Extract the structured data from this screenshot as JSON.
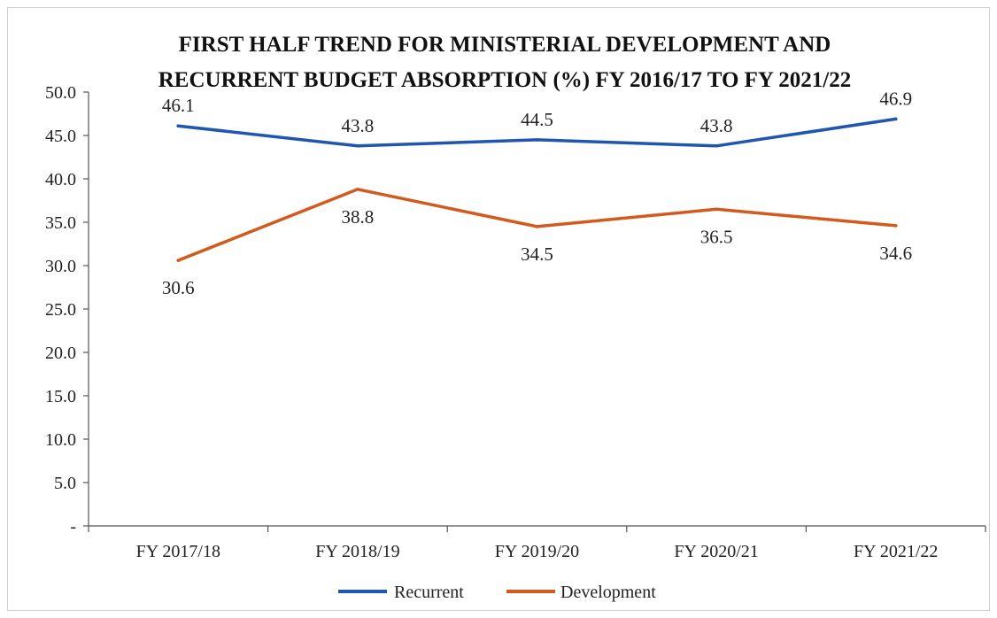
{
  "chart_data": {
    "type": "line",
    "title_lines": [
      "FIRST HALF TREND FOR MINISTERIAL DEVELOPMENT AND",
      "RECURRENT BUDGET ABSORPTION (%) FY 2016/17  TO FY 2021/22"
    ],
    "xlabel": "",
    "ylabel": "",
    "categories": [
      "FY 2017/18",
      "FY 2018/19",
      "FY 2019/20",
      "FY 2020/21",
      "FY 2021/22"
    ],
    "ylim": [
      0,
      50
    ],
    "yticks": [
      "-",
      "5.0",
      "10.0",
      "15.0",
      "20.0",
      "25.0",
      "30.0",
      "35.0",
      "40.0",
      "45.0",
      "50.0"
    ],
    "ytick_values": [
      0,
      5,
      10,
      15,
      20,
      25,
      30,
      35,
      40,
      45,
      50
    ],
    "grid": false,
    "legend_position": "bottom",
    "series": [
      {
        "name": "Recurrent",
        "color": "#1f56b0",
        "values": [
          46.1,
          43.8,
          44.5,
          43.8,
          46.9
        ],
        "labels": [
          "46.1",
          "43.8",
          "44.5",
          "43.8",
          "46.9"
        ],
        "label_position": "above"
      },
      {
        "name": "Development",
        "color": "#d35a1e",
        "values": [
          30.6,
          38.8,
          34.5,
          36.5,
          34.6
        ],
        "labels": [
          "30.6",
          "38.8",
          "34.5",
          "36.5",
          "34.6"
        ],
        "label_position": "below"
      }
    ]
  }
}
